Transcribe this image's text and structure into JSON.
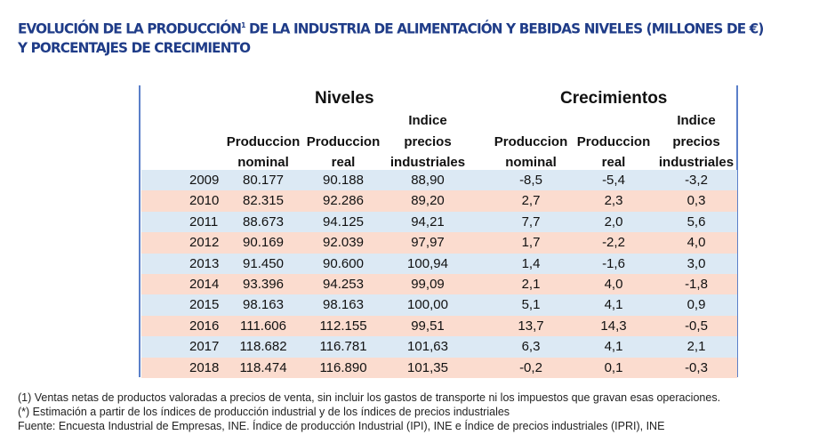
{
  "title": {
    "line1": "EVOLUCIÓN DE LA PRODUCCIÓN",
    "sup": "1",
    "line1b": " DE LA INDUSTRIA DE ALIMENTACIÓN Y BEBIDAS NIVELES (MILLONES DE €)",
    "line2": "Y PORCENTAJES DE CRECIMIENTO"
  },
  "groups": {
    "niveles": "Niveles",
    "crecimientos": "Crecimientos"
  },
  "headers": [
    {
      "l1": "",
      "l2": "Produccion",
      "l3": "nominal"
    },
    {
      "l1": "",
      "l2": "Produccion",
      "l3": "real"
    },
    {
      "l1": "Indice",
      "l2": "precios",
      "l3": "industriales"
    },
    {
      "l1": "",
      "l2": "Produccion",
      "l3": "nominal"
    },
    {
      "l1": "",
      "l2": "Produccion",
      "l3": "real"
    },
    {
      "l1": "Indice",
      "l2": "precios",
      "l3": "industriales"
    }
  ],
  "colors": {
    "blue_row": "#dce9f4",
    "pink_row": "#fbdccf",
    "border": "#5b7fc9",
    "title": "#1f3c88"
  },
  "rows": [
    [
      "2009",
      "80.177",
      "90.188",
      "88,90",
      "-8,5",
      "-5,4",
      "-3,2"
    ],
    [
      "2010",
      "82.315",
      "92.286",
      "89,20",
      "2,7",
      "2,3",
      "0,3"
    ],
    [
      "2011",
      "88.673",
      "94.125",
      "94,21",
      "7,7",
      "2,0",
      "5,6"
    ],
    [
      "2012",
      "90.169",
      "92.039",
      "97,97",
      "1,7",
      "-2,2",
      "4,0"
    ],
    [
      "2013",
      "91.450",
      "90.600",
      "100,94",
      "1,4",
      "-1,6",
      "3,0"
    ],
    [
      "2014",
      "93.396",
      "94.253",
      "99,09",
      "2,1",
      "4,0",
      "-1,8"
    ],
    [
      "2015",
      "98.163",
      "98.163",
      "100,00",
      "5,1",
      "4,1",
      "0,9"
    ],
    [
      "2016",
      "111.606",
      "112.155",
      "99,51",
      "13,7",
      "14,3",
      "-0,5"
    ],
    [
      "2017",
      "118.682",
      "116.781",
      "101,63",
      "6,3",
      "4,1",
      "2,1"
    ],
    [
      "2018",
      "118.474",
      "116.890",
      "101,35",
      "-0,2",
      "0,1",
      "-0,3"
    ]
  ],
  "footnotes": [
    "(1) Ventas netas de productos valoradas a precios de venta, sin incluir los gastos de transporte ni los impuestos que gravan esas operaciones.",
    "(*) Estimación a partir de los índices de producción industrial y de los índices de precios industriales",
    "Fuente: Encuesta Industrial de Empresas, INE. Índice de producción Industrial (IPI), INE e Índice de precios industriales (IPRI), INE"
  ]
}
